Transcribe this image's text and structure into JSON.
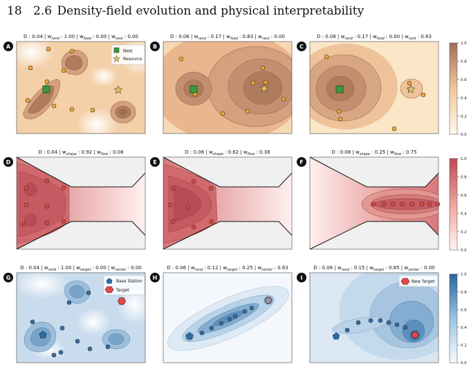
{
  "header": {
    "page_number": "18",
    "section_number": "2.6",
    "section_title": "Density-field evolution and physical interpretability"
  },
  "colors": {
    "orange_high": "#b07a5c",
    "orange_low": "#fff8ea",
    "red_high": "#c0505a",
    "red_low": "#fff0ee",
    "blue_high": "#2f6ea7",
    "blue_low": "#f4f8fc",
    "grey_bg": "#f0f0f0"
  },
  "colorbars": {
    "ticks": [
      "1.0",
      "0.8",
      "0.6",
      "0.4",
      "0.2",
      "0.0"
    ]
  },
  "legends": {
    "row1": {
      "nest": "Nest",
      "resource": "Resource"
    },
    "row3": {
      "base": "Base Station",
      "target": "Target",
      "new_target": "New Target"
    }
  },
  "panels": [
    {
      "letter": "A",
      "title": [
        {
          "t": "D : 0.04 | w"
        },
        {
          "s": "rand"
        },
        {
          "t": " : 1.00 | w"
        },
        {
          "s": "food"
        },
        {
          "t": " : 0.00 | w"
        },
        {
          "s": "nest"
        },
        {
          "t": " : 0.00"
        }
      ]
    },
    {
      "letter": "B",
      "title": [
        {
          "t": "D : 0.06 | w"
        },
        {
          "s": "rand"
        },
        {
          "t": " : 0.17 | w"
        },
        {
          "s": "food"
        },
        {
          "t": " : 0.83 | w"
        },
        {
          "s": "nest"
        },
        {
          "t": " : 0.00"
        }
      ]
    },
    {
      "letter": "C",
      "title": [
        {
          "t": "D : 0.08 | w"
        },
        {
          "s": "rand"
        },
        {
          "t": " : 0.17 | w"
        },
        {
          "s": "food"
        },
        {
          "t": " : 0.00 | w"
        },
        {
          "s": "nest"
        },
        {
          "t": " : 0.83"
        }
      ]
    },
    {
      "letter": "D",
      "title": [
        {
          "t": "D : 0.04 | w"
        },
        {
          "s": "shape"
        },
        {
          "t": " : 0.92 | w"
        },
        {
          "s": "flow"
        },
        {
          "t": " : 0.08"
        }
      ]
    },
    {
      "letter": "E",
      "title": [
        {
          "t": "D : 0.06 | w"
        },
        {
          "s": "shape"
        },
        {
          "t": " : 0.62 | w"
        },
        {
          "s": "flow"
        },
        {
          "t": " : 0.38"
        }
      ]
    },
    {
      "letter": "F",
      "title": [
        {
          "t": "D : 0.08 | w"
        },
        {
          "s": "shape"
        },
        {
          "t": " : 0.25 | w"
        },
        {
          "s": "flow"
        },
        {
          "t": " : 0.75"
        }
      ]
    },
    {
      "letter": "G",
      "title": [
        {
          "t": "D : 0.04 | w"
        },
        {
          "s": "rand"
        },
        {
          "t": " : 1.00 | w"
        },
        {
          "s": "target"
        },
        {
          "t": " : 0.00 | w"
        },
        {
          "s": "center"
        },
        {
          "t": " : 0.00"
        }
      ]
    },
    {
      "letter": "H",
      "title": [
        {
          "t": "D : 0.06 | w"
        },
        {
          "s": "rand"
        },
        {
          "t": " : 0.12 | w"
        },
        {
          "s": "target"
        },
        {
          "t": " : 0.25 | w"
        },
        {
          "s": "center"
        },
        {
          "t": " : 0.63"
        }
      ]
    },
    {
      "letter": "I",
      "title": [
        {
          "t": "D : 0.08 | w"
        },
        {
          "s": "rand"
        },
        {
          "t": " : 0.15 | w"
        },
        {
          "s": "target"
        },
        {
          "t": " : 0.85 | w"
        },
        {
          "s": "center"
        },
        {
          "t": " : 0.00"
        }
      ]
    }
  ]
}
